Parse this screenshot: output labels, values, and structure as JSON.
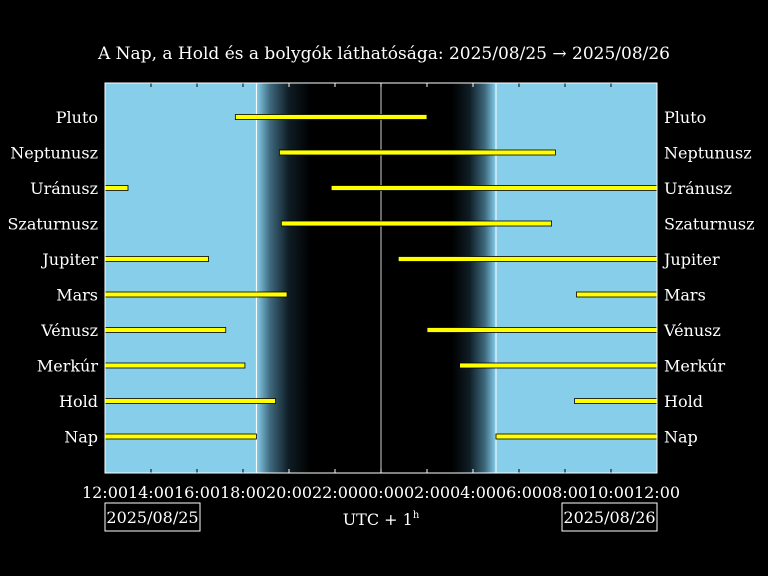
{
  "chart_data": {
    "type": "bar",
    "subtype": "horizontal-range-timeline",
    "title": "A Nap, a Hold és a bolygók láthatósága: 2025/08/25 → 2025/08/26",
    "xlabel": "UTC + 1",
    "xlabel_superscript": "h",
    "x_unit": "hours",
    "x_range": [
      "2025-08-25 12:00",
      "2025-08-26 12:00"
    ],
    "x_ticks": [
      "12:00",
      "14:00",
      "16:00",
      "18:00",
      "20:00",
      "22:00",
      "00:00",
      "02:00",
      "04:00",
      "06:00",
      "08:00",
      "10:00",
      "12:00"
    ],
    "start_date_label": "2025/08/25",
    "end_date_label": "2025/08/26",
    "midnight": "00:00",
    "day_color": "#87ceeb",
    "night_color": "#000000",
    "bar_color": "#ffff00",
    "sunset": "18:35",
    "night_start": "20:55",
    "night_end": "03:05",
    "sunrise": "05:00",
    "categories": [
      "Pluto",
      "Neptunusz",
      "Uránusz",
      "Szaturnusz",
      "Jupiter",
      "Mars",
      "Vénusz",
      "Merkúr",
      "Hold",
      "Nap"
    ],
    "bodies": [
      {
        "name": "Pluto",
        "intervals": [
          [
            "2025-08-25 17:40",
            "2025-08-26 02:00"
          ]
        ]
      },
      {
        "name": "Neptunusz",
        "intervals": [
          [
            "2025-08-25 19:35",
            "2025-08-26 07:35"
          ]
        ]
      },
      {
        "name": "Uránusz",
        "intervals": [
          [
            "2025-08-25 12:00",
            "2025-08-25 13:00"
          ],
          [
            "2025-08-25 21:50",
            "2025-08-26 12:00"
          ]
        ]
      },
      {
        "name": "Szaturnusz",
        "intervals": [
          [
            "2025-08-25 19:40",
            "2025-08-26 07:25"
          ]
        ]
      },
      {
        "name": "Jupiter",
        "intervals": [
          [
            "2025-08-25 12:00",
            "2025-08-25 16:30"
          ],
          [
            "2025-08-26 00:45",
            "2025-08-26 12:00"
          ]
        ]
      },
      {
        "name": "Mars",
        "intervals": [
          [
            "2025-08-25 12:00",
            "2025-08-25 19:55"
          ],
          [
            "2025-08-26 08:30",
            "2025-08-26 12:00"
          ]
        ]
      },
      {
        "name": "Vénusz",
        "intervals": [
          [
            "2025-08-25 12:00",
            "2025-08-25 17:15"
          ],
          [
            "2025-08-26 02:00",
            "2025-08-26 12:00"
          ]
        ]
      },
      {
        "name": "Merkúr",
        "intervals": [
          [
            "2025-08-25 12:00",
            "2025-08-25 18:05"
          ],
          [
            "2025-08-26 03:25",
            "2025-08-26 12:00"
          ]
        ]
      },
      {
        "name": "Hold",
        "intervals": [
          [
            "2025-08-25 12:00",
            "2025-08-25 19:25"
          ],
          [
            "2025-08-26 08:25",
            "2025-08-26 12:00"
          ]
        ]
      },
      {
        "name": "Nap",
        "intervals": [
          [
            "2025-08-25 12:00",
            "2025-08-25 18:35"
          ],
          [
            "2025-08-26 05:00",
            "2025-08-26 12:00"
          ]
        ]
      }
    ]
  }
}
